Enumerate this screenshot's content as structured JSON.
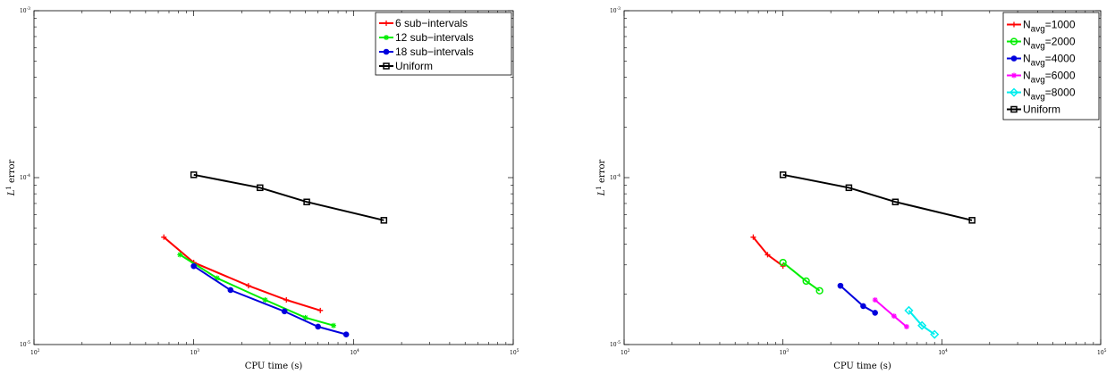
{
  "chart_data": [
    {
      "type": "line",
      "xscale": "log",
      "yscale": "log",
      "xlim": [
        100,
        100000
      ],
      "ylim": [
        1e-05,
        0.001
      ],
      "xlabel": "CPU time (s)",
      "ylabel": "L",
      "ylabel_sup": "1",
      "ylabel_rest": " error",
      "xticks": [
        {
          "value": 100,
          "base": "10",
          "exp": "2"
        },
        {
          "value": 1000,
          "base": "10",
          "exp": "3"
        },
        {
          "value": 10000,
          "base": "10",
          "exp": "4"
        },
        {
          "value": 100000,
          "base": "10",
          "exp": "5"
        }
      ],
      "yticks": [
        {
          "value": 1e-05,
          "base": "10",
          "exp": "-5"
        },
        {
          "value": 0.0001,
          "base": "10",
          "exp": "-4"
        },
        {
          "value": 0.001,
          "base": "10",
          "exp": "-3"
        }
      ],
      "grid": false,
      "legend_position": "top-right",
      "series": [
        {
          "name": "6 sub−intervals",
          "color": "#ff0000",
          "marker": "plus",
          "x": [
            650,
            1000,
            2200,
            3800,
            6200
          ],
          "y": [
            4.4e-05,
            3.1e-05,
            2.25e-05,
            1.85e-05,
            1.6e-05
          ]
        },
        {
          "name": "12 sub−intervals",
          "color": "#00ee00",
          "marker": "star",
          "x": [
            820,
            1400,
            2800,
            5000,
            7500
          ],
          "y": [
            3.45e-05,
            2.5e-05,
            1.85e-05,
            1.45e-05,
            1.3e-05
          ]
        },
        {
          "name": "18 sub−intervals",
          "color": "#0000dd",
          "marker": "dot",
          "x": [
            1000,
            1700,
            3700,
            6000,
            9000
          ],
          "y": [
            2.95e-05,
            2.12e-05,
            1.58e-05,
            1.28e-05,
            1.15e-05
          ]
        },
        {
          "name": "Uniform",
          "color": "#000000",
          "marker": "square",
          "x": [
            1000,
            2600,
            5100,
            15500
          ],
          "y": [
            0.000104,
            8.7e-05,
            7.15e-05,
            5.55e-05
          ]
        }
      ]
    },
    {
      "type": "line",
      "xscale": "log",
      "yscale": "log",
      "xlim": [
        100,
        100000
      ],
      "ylim": [
        1e-05,
        0.001
      ],
      "xlabel": "CPU time (s)",
      "ylabel": "L",
      "ylabel_sup": "1",
      "ylabel_rest": " error",
      "xticks": [
        {
          "value": 100,
          "base": "10",
          "exp": "2"
        },
        {
          "value": 1000,
          "base": "10",
          "exp": "3"
        },
        {
          "value": 10000,
          "base": "10",
          "exp": "4"
        },
        {
          "value": 100000,
          "base": "10",
          "exp": "5"
        }
      ],
      "yticks": [
        {
          "value": 1e-05,
          "base": "10",
          "exp": "-5"
        },
        {
          "value": 0.0001,
          "base": "10",
          "exp": "-4"
        },
        {
          "value": 0.001,
          "base": "10",
          "exp": "-3"
        }
      ],
      "grid": false,
      "legend_position": "top-right",
      "series": [
        {
          "name": "N",
          "name_sub": "avg",
          "name_rest": "=1000",
          "color": "#ff0000",
          "marker": "plus",
          "x": [
            650,
            800,
            1000
          ],
          "y": [
            4.4e-05,
            3.45e-05,
            2.95e-05
          ]
        },
        {
          "name": "N",
          "name_sub": "avg",
          "name_rest": "=2000",
          "color": "#00ee00",
          "marker": "circle",
          "x": [
            1000,
            1400,
            1700
          ],
          "y": [
            3.1e-05,
            2.4e-05,
            2.1e-05
          ]
        },
        {
          "name": "N",
          "name_sub": "avg",
          "name_rest": "=4000",
          "color": "#0000dd",
          "marker": "dot",
          "x": [
            2300,
            3200,
            3800
          ],
          "y": [
            2.25e-05,
            1.7e-05,
            1.55e-05
          ]
        },
        {
          "name": "N",
          "name_sub": "avg",
          "name_rest": "=6000",
          "color": "#ff00ff",
          "marker": "star",
          "x": [
            3800,
            5000,
            6000
          ],
          "y": [
            1.85e-05,
            1.48e-05,
            1.28e-05
          ]
        },
        {
          "name": "N",
          "name_sub": "avg",
          "name_rest": "=8000",
          "color": "#00eeee",
          "marker": "diamond",
          "x": [
            6200,
            7500,
            9000
          ],
          "y": [
            1.6e-05,
            1.3e-05,
            1.15e-05
          ]
        },
        {
          "name": "Uniform",
          "color": "#000000",
          "marker": "square",
          "x": [
            1000,
            2600,
            5100,
            15500
          ],
          "y": [
            0.000104,
            8.7e-05,
            7.15e-05,
            5.55e-05
          ]
        }
      ]
    }
  ]
}
